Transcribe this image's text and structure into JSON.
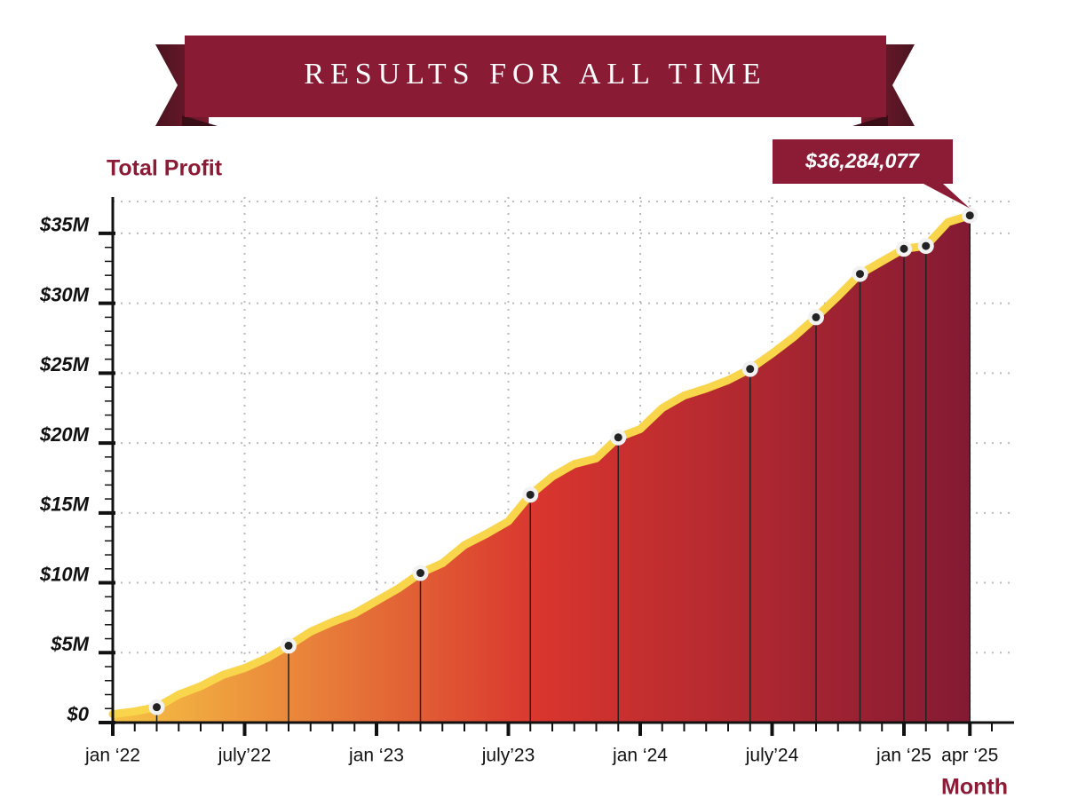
{
  "chart_data": {
    "type": "area-line",
    "title": "RESULTS FOR ALL TIME",
    "y_label": "Total Profit",
    "x_label": "Month",
    "annotation": "$36,284,077",
    "categories": [
      "jan ‘22",
      null,
      null,
      null,
      null,
      null,
      "july’22",
      null,
      null,
      null,
      null,
      null,
      "jan ‘23",
      null,
      null,
      null,
      null,
      null,
      "july’23",
      null,
      null,
      null,
      null,
      null,
      "jan ‘24",
      null,
      null,
      null,
      null,
      null,
      "july’24",
      null,
      null,
      null,
      null,
      null,
      "jan ‘25",
      null,
      null,
      "apr ‘25"
    ],
    "values": [
      600000,
      800000,
      1100000,
      2000000,
      2600000,
      3400000,
      3900000,
      4600000,
      5500000,
      6500000,
      7200000,
      7800000,
      8700000,
      9600000,
      10700000,
      11400000,
      12700000,
      13500000,
      14400000,
      16300000,
      17600000,
      18500000,
      18900000,
      20400000,
      21000000,
      22500000,
      23400000,
      23900000,
      24500000,
      25300000,
      26400000,
      27600000,
      29000000,
      30500000,
      32100000,
      33000000,
      33900000,
      34100000,
      35800000,
      36284077
    ],
    "marker_indices": [
      2,
      8,
      14,
      19,
      23,
      29,
      32,
      34,
      36,
      37,
      39
    ],
    "ylim": [
      0,
      37600000
    ],
    "yticks": [
      {
        "value": 0,
        "label": "$0"
      },
      {
        "value": 5000000,
        "label": "$5M"
      },
      {
        "value": 10000000,
        "label": "$10M"
      },
      {
        "value": 15000000,
        "label": "$15M"
      },
      {
        "value": 20000000,
        "label": "$20M"
      },
      {
        "value": 25000000,
        "label": "$25M"
      },
      {
        "value": 30000000,
        "label": "$30M"
      },
      {
        "value": 35000000,
        "label": "$35M"
      }
    ],
    "grid": true,
    "line_color": "#f9d54c",
    "fill_colors": [
      "#f6c244",
      "#d9352e",
      "#831a33"
    ],
    "accent": "#8c1b35"
  }
}
